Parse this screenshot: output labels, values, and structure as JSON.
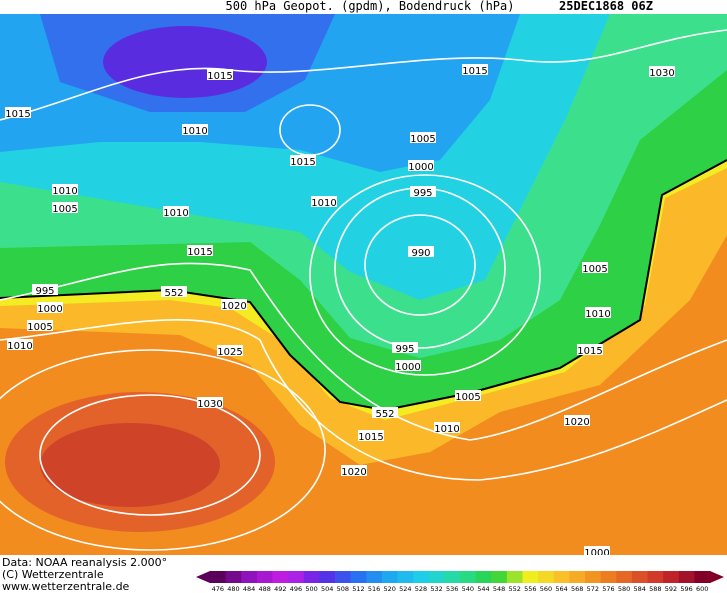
{
  "header": {
    "title": "500 hPa Geopot. (gpdm), Bodendruck (hPa)",
    "date": "25DEC1868 06Z"
  },
  "isobar_labels": [
    "1015",
    "1015",
    "1030",
    "1015",
    "1010",
    "1005",
    "1015",
    "1000",
    "1010",
    "995",
    "1005",
    "1010",
    "1010",
    "1015",
    "990",
    "1005",
    "995",
    "552",
    "1000",
    "1020",
    "1010",
    "1005",
    "1015",
    "1010",
    "995",
    "1025",
    "1000",
    "1005",
    "1030",
    "552",
    "1020",
    "1010",
    "1015",
    "1020",
    "1000"
  ],
  "credits": [
    "Data: NOAA reanalysis 2.000°",
    "(C) Wetterzentrale",
    "www.wetterzentrale.de"
  ],
  "colorbar_labels": [
    "476",
    "480",
    "484",
    "488",
    "492",
    "496",
    "500",
    "504",
    "508",
    "512",
    "516",
    "520",
    "524",
    "528",
    "532",
    "536",
    "540",
    "544",
    "548",
    "552",
    "556",
    "560",
    "564",
    "568",
    "572",
    "576",
    "580",
    "584",
    "588",
    "592",
    "596",
    "600"
  ]
}
